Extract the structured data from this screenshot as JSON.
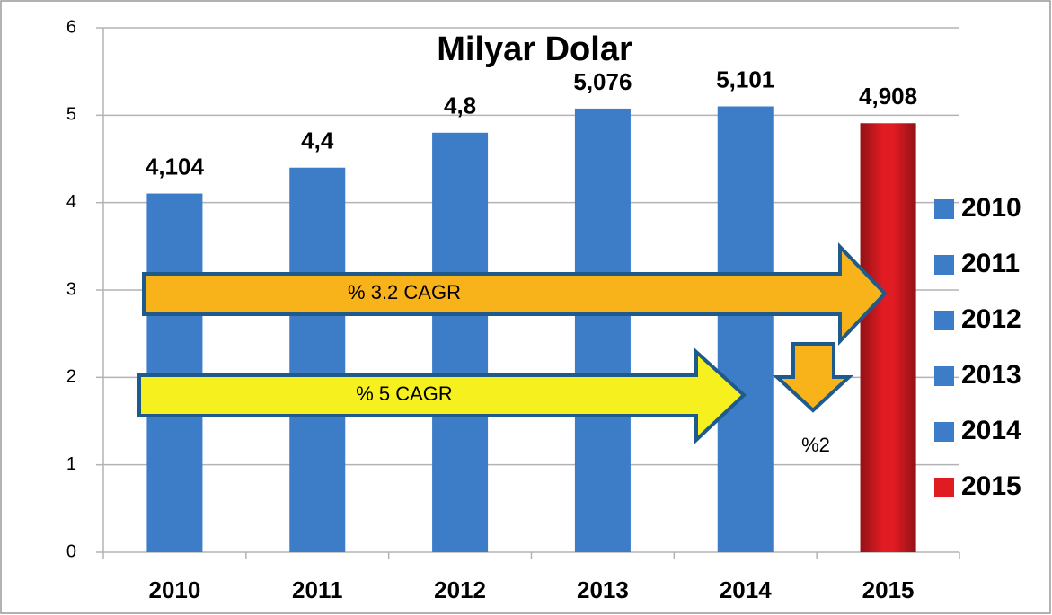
{
  "chart_data": {
    "type": "bar",
    "title": "Milyar Dolar",
    "categories": [
      "2010",
      "2011",
      "2012",
      "2013",
      "2014",
      "2015"
    ],
    "values": [
      4.104,
      4.4,
      4.8,
      5.076,
      5.101,
      4.908
    ],
    "value_labels": [
      "4,104",
      "4,4",
      "4,8",
      "5,076",
      "5,101",
      "4,908"
    ],
    "colors": [
      "#3d7cc6",
      "#3d7cc6",
      "#3d7cc6",
      "#3d7cc6",
      "#3d7cc6",
      "#e01b22"
    ],
    "ylim": [
      0,
      6
    ],
    "yticks": [
      0,
      1,
      2,
      3,
      4,
      5,
      6
    ],
    "grid": true,
    "legend": "right",
    "annotations": [
      "% 3.2 CAGR",
      "% 5 CAGR",
      "%2"
    ]
  }
}
